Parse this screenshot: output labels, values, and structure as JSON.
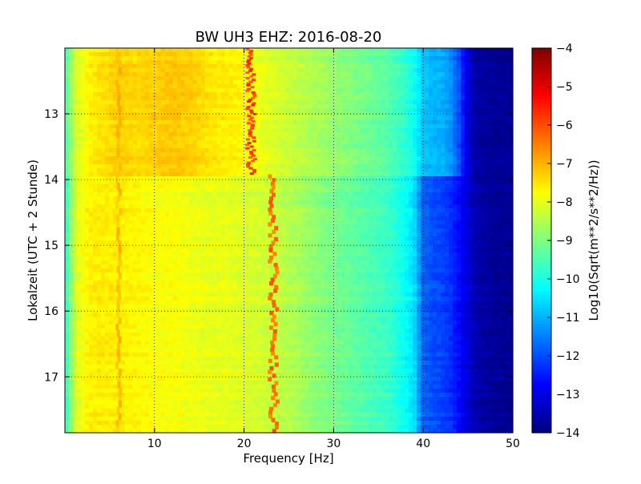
{
  "chart_data": {
    "type": "heatmap",
    "title": "BW UH3 EHZ: 2016-08-20",
    "xlabel": "Frequency [Hz]",
    "ylabel": "Lokalzeit (UTC + 2 Stunde)",
    "xlim": [
      0,
      50
    ],
    "ylim": [
      17.85,
      12.0
    ],
    "y_axis_inverted": true,
    "x_ticks": [
      10,
      20,
      30,
      40,
      50
    ],
    "x_tick_labels": [
      "10",
      "20",
      "30",
      "40",
      "50"
    ],
    "y_ticks": [
      13,
      14,
      15,
      16,
      17
    ],
    "y_tick_labels": [
      "13",
      "14",
      "15",
      "16",
      "17"
    ],
    "grid": true,
    "colormap": "jet",
    "colorbar": {
      "label": "Log10(Sqrt(m**2/s**2/Hz))",
      "range": [
        -14,
        -4
      ],
      "ticks": [
        -4,
        -5,
        -6,
        -7,
        -8,
        -9,
        -10,
        -11,
        -12,
        -13,
        -14
      ],
      "tick_labels": [
        "−4",
        "−5",
        "−6",
        "−7",
        "−8",
        "−9",
        "−10",
        "−11",
        "−12",
        "−13",
        "−14"
      ]
    },
    "spectrum_profile": {
      "frequency_hz": [
        0,
        0.5,
        1,
        2,
        3,
        4,
        5,
        6,
        8,
        10,
        12,
        14,
        16,
        18,
        20,
        22,
        24,
        26,
        28,
        30,
        32,
        34,
        36,
        38,
        39,
        40,
        41,
        42,
        43,
        44,
        45,
        46,
        48,
        50
      ],
      "value_before_14h": [
        -9.6,
        -9.0,
        -8.3,
        -7.9,
        -7.6,
        -7.5,
        -7.4,
        -7.3,
        -7.4,
        -7.3,
        -7.2,
        -7.3,
        -7.5,
        -7.6,
        -7.7,
        -8.0,
        -8.2,
        -8.4,
        -8.6,
        -8.8,
        -9.0,
        -9.2,
        -9.4,
        -9.8,
        -10.2,
        -10.8,
        -11.0,
        -11.0,
        -11.3,
        -12.0,
        -13.2,
        -13.7,
        -13.8,
        -13.8
      ],
      "value_after_14h": [
        -10.0,
        -9.2,
        -8.3,
        -7.8,
        -7.6,
        -7.6,
        -7.6,
        -7.6,
        -7.7,
        -7.8,
        -7.8,
        -7.9,
        -8.0,
        -8.0,
        -8.1,
        -8.2,
        -8.4,
        -8.6,
        -8.9,
        -9.1,
        -9.3,
        -9.5,
        -9.7,
        -10.2,
        -10.6,
        -11.8,
        -12.0,
        -12.1,
        -12.3,
        -12.7,
        -13.2,
        -13.6,
        -13.8,
        -13.8
      ]
    },
    "peak_lines": [
      {
        "time_start": 12.0,
        "time_end": 13.92,
        "frequency_hz": 20.8,
        "value": -5.8
      },
      {
        "time_start": 13.92,
        "time_end": 17.85,
        "frequency_hz": 23.3,
        "value": -6.3
      }
    ],
    "secondary_lines": [
      {
        "time_start": 12.0,
        "time_end": 17.85,
        "frequency_hz": 6.0,
        "value": -7.0
      }
    ],
    "regime_change_time": 13.92
  }
}
